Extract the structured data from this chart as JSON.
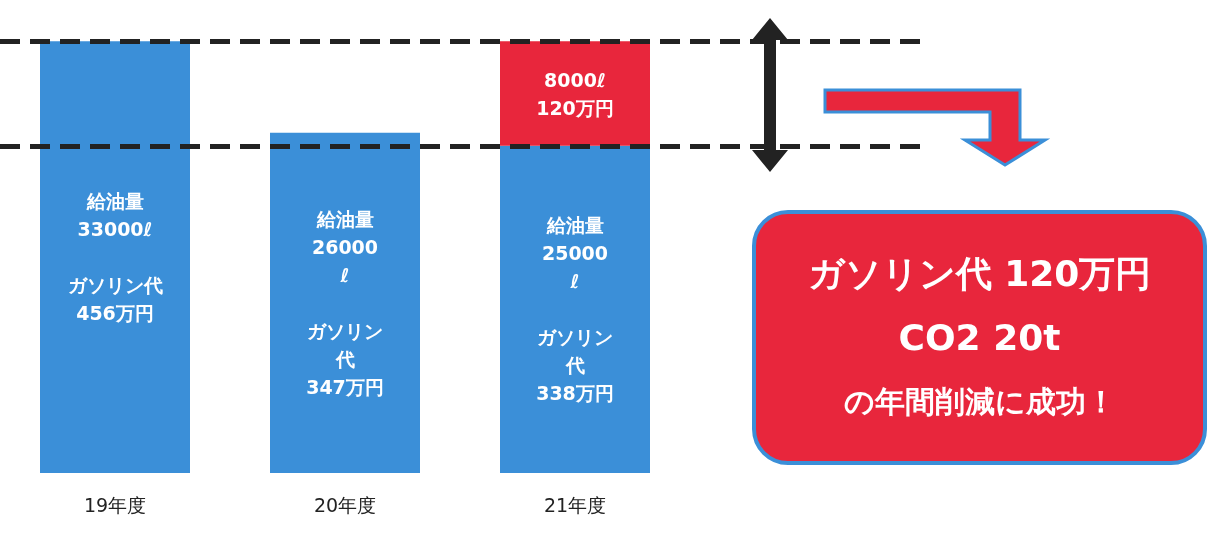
{
  "chart_data": {
    "type": "bar",
    "stacked": true,
    "categories": [
      "19年度",
      "20年度",
      "21年度"
    ],
    "series": [
      {
        "color": "#3b8fd8",
        "values": [
          33000,
          26000,
          25000
        ],
        "value_labels": [
          "給油量\n33000ℓ\n\nガソリン代\n456万円",
          "給油量\n26000ℓ\n\nガソリン代\n347万円",
          "給油量\n25000ℓ\n\nガソリン代\n338万円"
        ]
      },
      {
        "color": "#e8263c",
        "values": [
          null,
          null,
          8000
        ],
        "value_labels": [
          null,
          null,
          "8000ℓ\n120万円"
        ]
      }
    ],
    "ref_lines": [
      {
        "axis": "y",
        "value": 33000,
        "color": "#222222",
        "line_style": "dashed"
      },
      {
        "axis": "y",
        "value": 25000,
        "color": "#222222",
        "line_style": "dashed"
      }
    ],
    "annotations": [
      "ガソリン代 120万円",
      "CO2 20t",
      "の年間削減に成功！"
    ],
    "grid": false
  }
}
